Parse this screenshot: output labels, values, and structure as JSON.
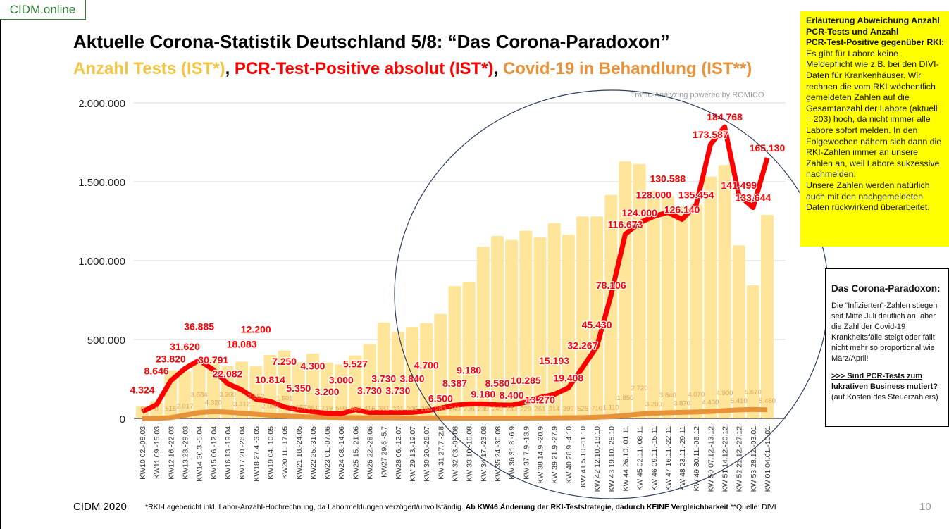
{
  "brand": "CIDM.online",
  "title": "Aktuelle Corona-Statistik Deutschland 5/8: “Das Corona-Paradoxon”",
  "subtitle": {
    "part1": "Anzahl Tests (IST*)",
    "part2": "PCR-Test-Positive absolut (IST*)",
    "part3": "Covid-19 in Behandlung (IST**)",
    "separator": ", "
  },
  "credit": "Traffic-Analyzing powered by ROMICO",
  "note": {
    "heading": [
      "Erläuterung Abweichung Anzahl",
      "PCR-Tests und Anzahl",
      "PCR-Test-Positive gegenüber RKI:"
    ],
    "body": "Es gibt für Labore keine Meldepflicht wie z.B. bei den DIVI-Daten für Krankenhäuser. Wir rechnen die vom RKI wöchentlich gemeldeten Zahlen auf die Gesamtanzahl der Labore (aktuell = 203) hoch, da nicht immer alle Labore sofort melden. In den Folgewochen nähern sich dann die RKI-Zahlen immer an unsere Zahlen an, weil Labore sukzessive nachmelden.",
    "body2": "Unsere Zahlen werden natürlich auch mit den nachgemeldeten Daten rückwirkend überarbeitet."
  },
  "paradox": {
    "heading": "Das Corona-Paradoxon:",
    "body": "Die “Infizierten”-Zahlen stiegen seit Mitte Juli deutlich an, aber die Zahl der Covid-19 Krankheitsfälle steigt oder fällt nicht mehr so proportional wie März/April!",
    "question": ">>> Sind PCR-Tests zum lukrativen Business mutiert?",
    "aside": "(auf Kosten des Steuerzahlers)"
  },
  "footer": {
    "left": "CIDM 2020",
    "footnote_plain": "*RKI-Lagebericht inkl. Labor-Anzahl-Hochrechnung, da Labormeldungen verzögert/unvollständig. ",
    "footnote_bold": "Ab KW46 Änderung der RKI-Teststrategie, dadurch KEINE Vergleichbarkeit",
    "footnote_end": " **Quelle: DIVI",
    "page": "10"
  },
  "chart_data": {
    "type": "bar+line",
    "title": "",
    "xlabel": "",
    "ylabel": "",
    "ylim": [
      0,
      2000000
    ],
    "secondary_ylim": [
      0,
      200000
    ],
    "yticks": [
      "0",
      "500.000",
      "1.000.000",
      "1.500.000",
      "2.000.000"
    ],
    "ytick_values": [
      0,
      500000,
      1000000,
      1500000,
      2000000
    ],
    "grid": true,
    "colors": {
      "tests": "#ffe599",
      "positives": "#ff0000",
      "treatment": "#e8923a",
      "grid": "#d9d9d9"
    },
    "categories": [
      "KW10 02.-08.03.",
      "KW11 09.-15.03.",
      "KW12 16.-22.03.",
      "KW13 23.-29.03.",
      "KW14 30.3.-5.04.",
      "KW15 06.-12.04.",
      "KW16 13.-19.04.",
      "KW17 20.-26.04.",
      "KW18 27.4.-3.05.",
      "KW19 04.-10.05.",
      "KW20 11.-17.05.",
      "KW21 18.-24.05.",
      "KW22 25.-31.05.",
      "KW23 01.-07.06.",
      "KW24 08.-14.06.",
      "KW25 15.-21.06.",
      "KW26 22.-28.06.",
      "KW27 29.6.-5.7.",
      "KW28 06.-12.07.",
      "KW 29 13.-19.07.",
      "KW 30 20.-26.07.",
      "KW 31 27.7.-2.8.",
      "KW 32 03.-09.08.",
      "KW 33 10.-16.08.",
      "KW 34 17.-23.08.",
      "KW 35 24.-30.08.",
      "KW 36 31.8.-6.9.",
      "KW 37 7.9.-13.9.",
      "KW 38 14.9.-20.9.",
      "KW 39 21.9.-27.9.",
      "KW 40 28.9.-4.10.",
      "KW 41 5.10.-11.10.",
      "KW 42 12.10.-18.10.",
      "KW 43 19.10.-25.10.",
      "KW 44 26.10.-01.11.",
      "KW 45 02.11.-08.11.",
      "KW 46 09.11.-15.11.",
      "KW 47 16.11.-22.11.",
      "KW 48 23.11.-29.11.",
      "KW 49 30.11.-06.12.",
      "KW 50 07.12.-13.12.",
      "KW 51 14.12.-20.12.",
      "KW 52 21.12.-27.12.",
      "KW 53 28.12.-03.01.",
      "KW 01 04.01.-10.01."
    ],
    "series": [
      {
        "name": "Anzahl Tests (IST*)",
        "type": "bar",
        "axis": "primary",
        "values": [
          80000,
          110000,
          305000,
          300000,
          365000,
          375000,
          330000,
          360000,
          330000,
          402000,
          429000,
          356000,
          411000,
          353000,
          342000,
          399000,
          472000,
          607000,
          548000,
          580000,
          604000,
          662000,
          838000,
          866000,
          1089000,
          1156000,
          1131000,
          1190000,
          1149000,
          1238000,
          1164000,
          1280000,
          1280000,
          1417000,
          1629000,
          1613000,
          1443000,
          1410000,
          1344000,
          1357000,
          1533000,
          1606000,
          1097000,
          844000,
          1290000
        ]
      },
      {
        "name": "PCR-Test-Positive absolut (IST*)",
        "type": "line",
        "axis": "secondary",
        "values": [
          4324,
          8646,
          23820,
          31620,
          36885,
          30791,
          22082,
          18083,
          12200,
          10814,
          7250,
          5350,
          4300,
          3200,
          3000,
          5527,
          3730,
          3730,
          3730,
          3840,
          4700,
          6500,
          8387,
          9180,
          9180,
          8580,
          8400,
          10285,
          13270,
          15193,
          19408,
          32267,
          45430,
          78106,
          116673,
          124000,
          128000,
          130588,
          126140,
          135454,
          173587,
          184768,
          141499,
          133644,
          165130
        ]
      },
      {
        "name": "Covid-19 in Behandlung (IST**)",
        "type": "line",
        "axis": "secondary",
        "values": [
          0,
          0,
          516,
          2017,
          3684,
          4320,
          3960,
          3312,
          2652,
          2000,
          1501,
          1157,
          861,
          719,
          560,
          460,
          416,
          381,
          331,
          296,
          288,
          283,
          249,
          236,
          239,
          249,
          233,
          229,
          261,
          314,
          399,
          526,
          710,
          1110,
          1850,
          2720,
          3290,
          3640,
          3870,
          4070,
          4430,
          4900,
          5410,
          5670,
          5460
        ]
      }
    ]
  }
}
